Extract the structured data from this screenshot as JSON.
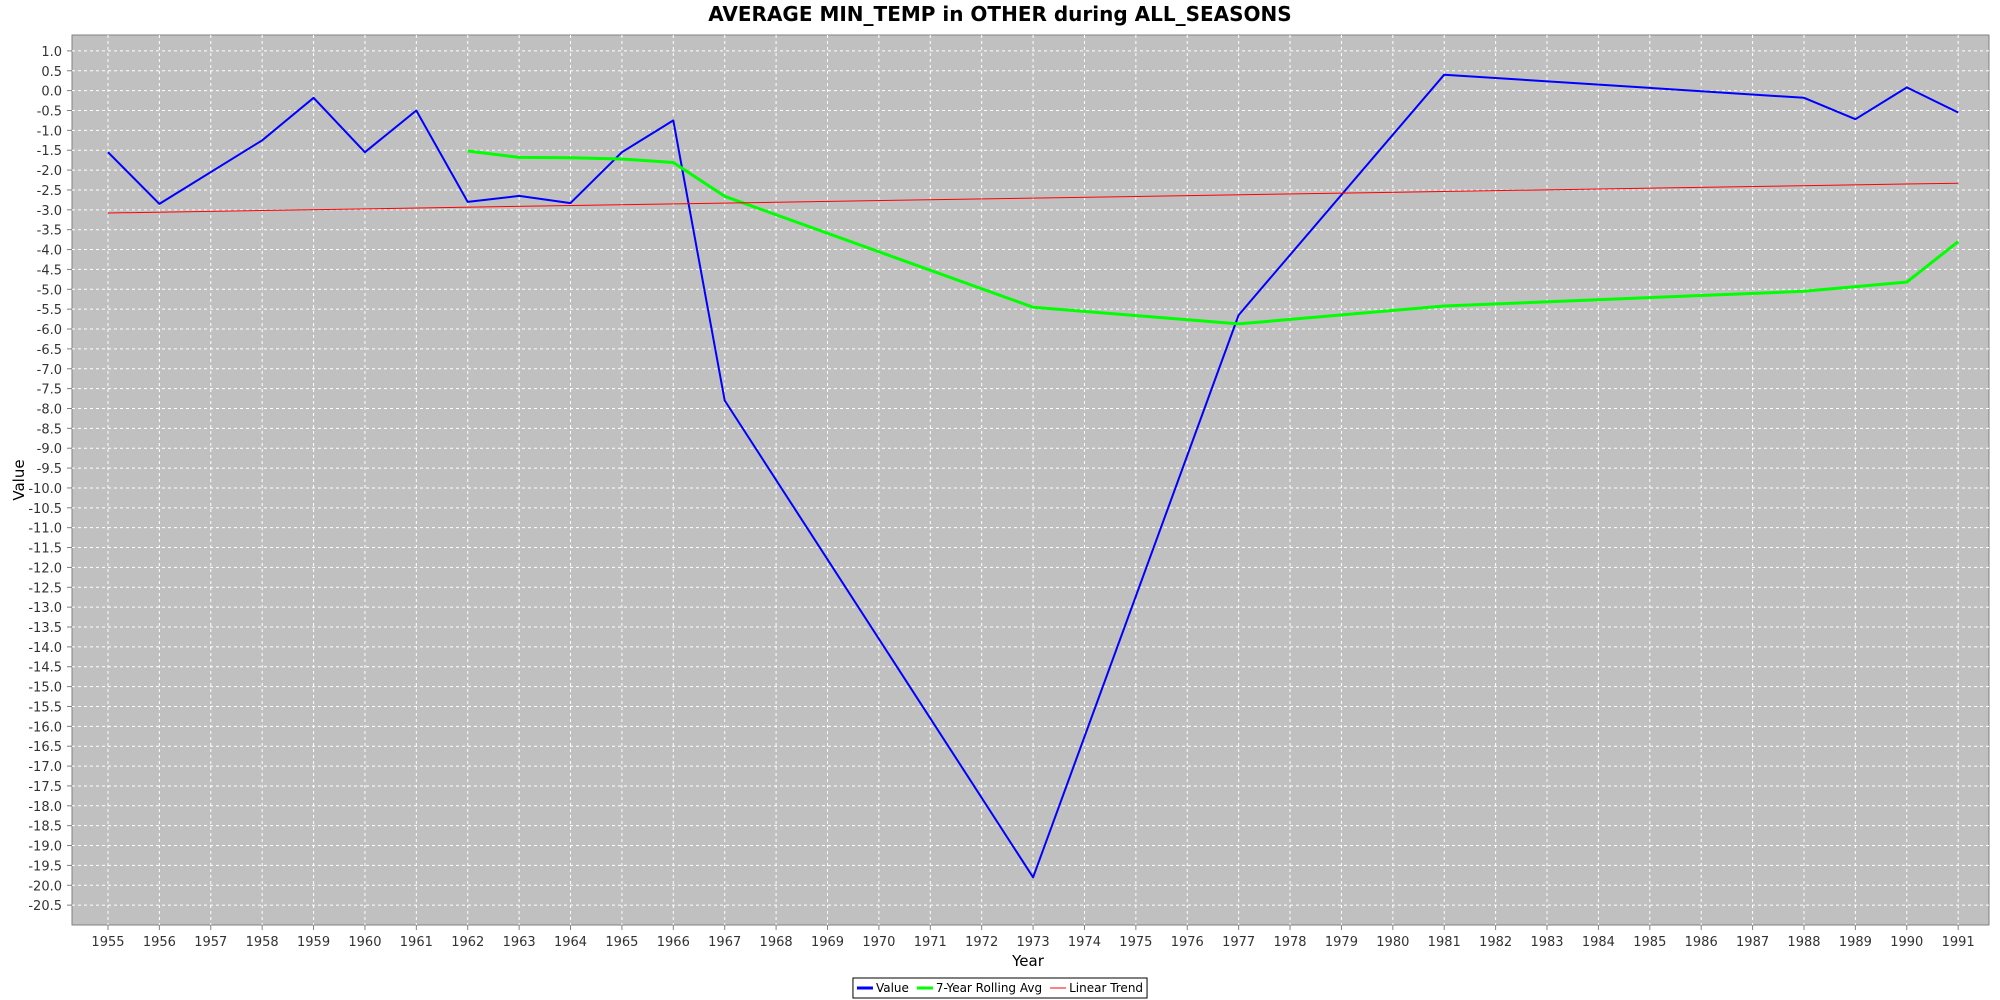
{
  "chart_data": {
    "type": "line",
    "title": "AVERAGE MIN_TEMP in OTHER during ALL_SEASONS",
    "xlabel": "Year",
    "ylabel": "Value",
    "x_ticks": [
      1955,
      1956,
      1957,
      1958,
      1959,
      1960,
      1961,
      1962,
      1963,
      1964,
      1965,
      1966,
      1967,
      1968,
      1969,
      1970,
      1971,
      1972,
      1973,
      1974,
      1975,
      1976,
      1977,
      1978,
      1979,
      1980,
      1981,
      1982,
      1983,
      1984,
      1985,
      1986,
      1987,
      1988,
      1989,
      1990,
      1991
    ],
    "y_ticks": [
      1.0,
      0.5,
      0.0,
      -0.5,
      -1.0,
      -1.5,
      -2.0,
      -2.5,
      -3.0,
      -3.5,
      -4.0,
      -4.5,
      -5.0,
      -5.5,
      -6.0,
      -6.5,
      -7.0,
      -7.5,
      -8.0,
      -8.5,
      -9.0,
      -9.5,
      -10.0,
      -10.5,
      -11.0,
      -11.5,
      -12.0,
      -12.5,
      -13.0,
      -13.5,
      -14.0,
      -14.5,
      -15.0,
      -15.5,
      -16.0,
      -16.5,
      -17.0,
      -17.5,
      -18.0,
      -18.5,
      -19.0,
      -19.5,
      -20.0,
      -20.5
    ],
    "xlim": [
      1954.3,
      1991.6
    ],
    "ylim": [
      -21.0,
      1.4
    ],
    "grid": true,
    "legend_position": "bottom-center",
    "series": [
      {
        "name": "Value",
        "color": "#0000ff",
        "x": [
          1955,
          1956,
          1958,
          1959,
          1960,
          1961,
          1962,
          1963,
          1964,
          1965,
          1966,
          1967,
          1973,
          1977,
          1981,
          1988,
          1989,
          1990,
          1991
        ],
        "y": [
          -1.55,
          -2.85,
          -1.25,
          -0.18,
          -1.55,
          -0.5,
          -2.8,
          -2.65,
          -2.83,
          -1.55,
          -0.75,
          -7.8,
          -19.8,
          -5.65,
          0.4,
          -0.18,
          -0.72,
          0.08,
          -0.55
        ]
      },
      {
        "name": "7-Year Rolling Avg",
        "color": "#00ff00",
        "x": [
          1962,
          1963,
          1964,
          1965,
          1966,
          1967,
          1973,
          1977,
          1981,
          1988,
          1990,
          1991
        ],
        "y": [
          -1.52,
          -1.68,
          -1.69,
          -1.72,
          -1.81,
          -2.66,
          -5.45,
          -5.87,
          -5.42,
          -5.05,
          -4.82,
          -3.8
        ]
      },
      {
        "name": "Linear Trend",
        "color": "#ff0000",
        "x": [
          1955,
          1991
        ],
        "y": [
          -3.08,
          -2.33
        ]
      }
    ]
  }
}
